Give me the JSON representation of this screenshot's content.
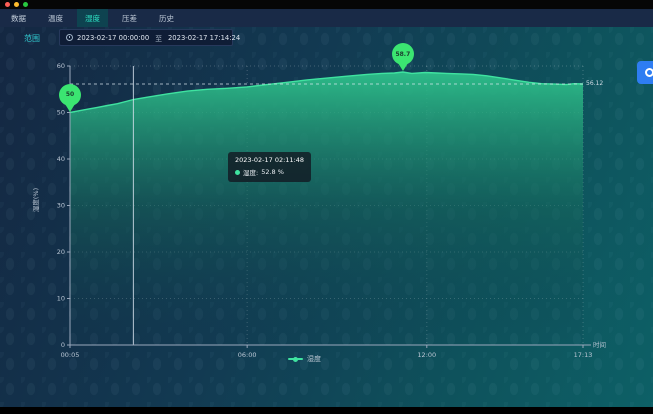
{
  "window": {
    "traffic_lights": [
      {
        "name": "close",
        "color": "#ff5f57"
      },
      {
        "name": "minimize",
        "color": "#febc2e"
      },
      {
        "name": "zoom",
        "color": "#28c840"
      }
    ]
  },
  "nav": {
    "tabs": [
      {
        "label": "数据",
        "active": false
      },
      {
        "label": "温度",
        "active": false
      },
      {
        "label": "湿度",
        "active": true
      },
      {
        "label": "压差",
        "active": false
      },
      {
        "label": "历史",
        "active": false
      }
    ]
  },
  "filter": {
    "range_label": "范围",
    "clock_icon": "clock-icon",
    "start": "2023-02-17 00:00:00",
    "separator": "至",
    "end": "2023-02-17 17:14:24"
  },
  "chart_data": {
    "type": "area",
    "title": "",
    "ylabel": "湿度(%)",
    "xlabel": "时间",
    "ylim": [
      0,
      60
    ],
    "yticks": [
      0,
      10,
      20,
      30,
      40,
      50,
      60
    ],
    "x_range": [
      5,
      1033
    ],
    "xticks": [
      {
        "t": 5,
        "label": "00:05",
        "grid": false
      },
      {
        "t": 360,
        "label": "06:00",
        "grid": true
      },
      {
        "t": 720,
        "label": "12:00",
        "grid": true
      },
      {
        "t": 1033,
        "label": "17:13",
        "grid": true
      }
    ],
    "grid": true,
    "legend_position": "bottom",
    "series": [
      {
        "name": "湿度",
        "unit": "%",
        "color": "#3fe3a0",
        "points": [
          [
            5,
            50.0
          ],
          [
            20,
            50.3
          ],
          [
            40,
            50.7
          ],
          [
            60,
            51.1
          ],
          [
            80,
            51.5
          ],
          [
            100,
            51.9
          ],
          [
            132,
            52.8
          ],
          [
            160,
            53.3
          ],
          [
            200,
            54.0
          ],
          [
            240,
            54.6
          ],
          [
            280,
            55.0
          ],
          [
            320,
            55.2
          ],
          [
            360,
            55.5
          ],
          [
            400,
            56.0
          ],
          [
            440,
            56.5
          ],
          [
            480,
            57.0
          ],
          [
            520,
            57.4
          ],
          [
            560,
            57.8
          ],
          [
            600,
            58.2
          ],
          [
            630,
            58.4
          ],
          [
            655,
            58.5
          ],
          [
            672,
            58.7
          ],
          [
            690,
            58.4
          ],
          [
            717,
            58.6
          ],
          [
            740,
            58.5
          ],
          [
            760,
            58.4
          ],
          [
            790,
            58.3
          ],
          [
            813,
            58.2
          ],
          [
            840,
            57.9
          ],
          [
            870,
            57.4
          ],
          [
            900,
            56.9
          ],
          [
            925,
            56.5
          ],
          [
            950,
            56.2
          ],
          [
            975,
            56.1
          ],
          [
            1000,
            56.0
          ],
          [
            1015,
            56.2
          ],
          [
            1033,
            56.12
          ]
        ]
      }
    ],
    "area_gradient": [
      "rgba(46,193,139,0.95)",
      "rgba(21,104,92,0.55)",
      "rgba(13,58,76,0.08)"
    ],
    "mark_line_value": 56.12,
    "crosshair_t": 132,
    "min_point": {
      "t": 5,
      "v": 50
    },
    "max_point": {
      "t": 672,
      "v": 58.7
    }
  },
  "markers": {
    "min": "50",
    "max": "58.7",
    "last": "56.12"
  },
  "tooltip": {
    "title": "2023-02-17 02:11:48",
    "series_label": "湿度:",
    "value": "52.8 %"
  },
  "legend": {
    "label": "湿度"
  },
  "colors": {
    "accent_teal": "#2ee5c6",
    "line_green": "#3fe3a0",
    "pin_green": "#3be571",
    "side_button_blue": "#2e7df2",
    "nav_bg": "#192a47",
    "active_tab_bg": "#0e4350"
  }
}
